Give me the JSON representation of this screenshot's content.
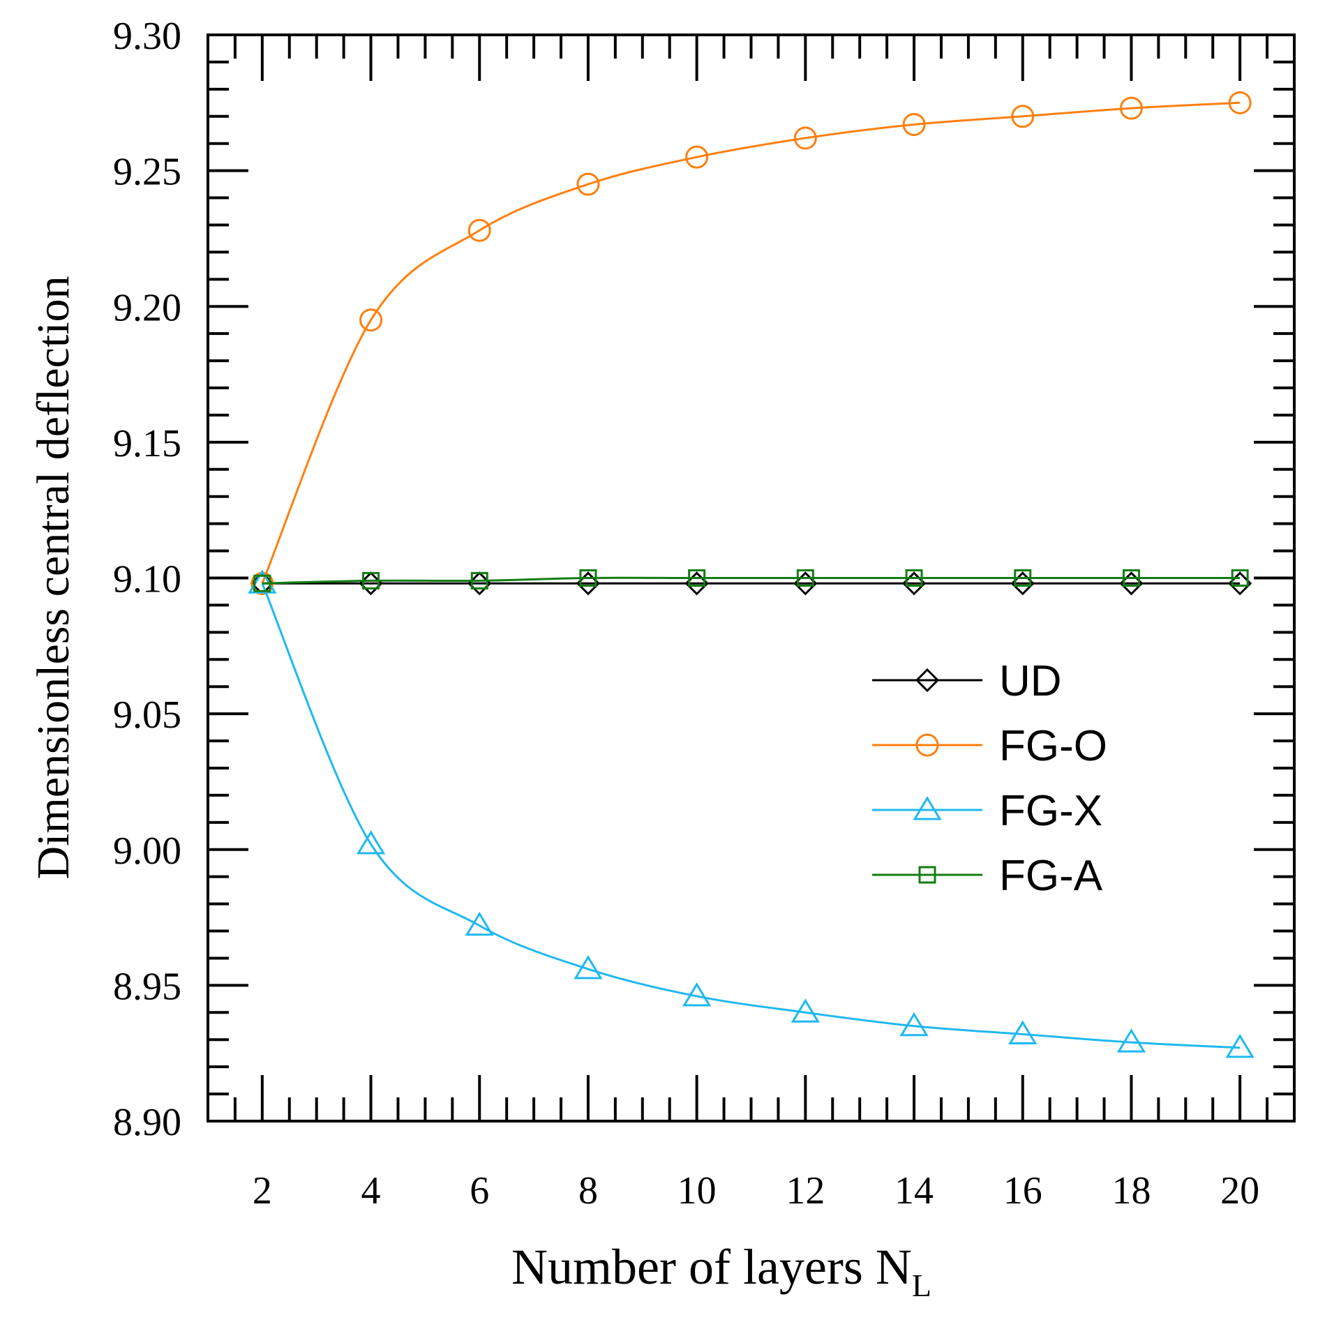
{
  "chart_data": {
    "type": "line",
    "title": "",
    "xlabel": "Number of layers N",
    "xlabel_subscript": "L",
    "ylabel": "Dimensionless central deflection",
    "xlim": [
      1,
      21
    ],
    "ylim": [
      8.9,
      9.3
    ],
    "x": [
      2,
      4,
      6,
      8,
      10,
      12,
      14,
      16,
      18,
      20
    ],
    "xticks": [
      2,
      4,
      6,
      8,
      10,
      12,
      14,
      16,
      18,
      20
    ],
    "xtick_labels": [
      "2",
      "4",
      "6",
      "8",
      "10",
      "12",
      "14",
      "16",
      "18",
      "20"
    ],
    "yticks": [
      8.9,
      8.95,
      9.0,
      9.05,
      9.1,
      9.15,
      9.2,
      9.25,
      9.3
    ],
    "ytick_labels": [
      "8.90",
      "8.95",
      "9.00",
      "9.05",
      "9.10",
      "9.15",
      "9.20",
      "9.25",
      "9.30"
    ],
    "grid": false,
    "legend_position": "right-center",
    "series": [
      {
        "name": "UD",
        "color": "#000000",
        "marker": "diamond",
        "values": [
          9.098,
          9.098,
          9.098,
          9.098,
          9.098,
          9.098,
          9.098,
          9.098,
          9.098,
          9.098
        ]
      },
      {
        "name": "FG-O",
        "color": "#ff7f0e",
        "marker": "circle",
        "values": [
          9.098,
          9.195,
          9.228,
          9.245,
          9.255,
          9.262,
          9.267,
          9.27,
          9.273,
          9.275
        ]
      },
      {
        "name": "FG-X",
        "color": "#1fb8f0",
        "marker": "triangle",
        "values": [
          9.098,
          9.002,
          8.972,
          8.956,
          8.946,
          8.94,
          8.935,
          8.932,
          8.929,
          8.927
        ]
      },
      {
        "name": "FG-A",
        "color": "#127d12",
        "marker": "square",
        "values": [
          9.098,
          9.099,
          9.099,
          9.1,
          9.1,
          9.1,
          9.1,
          9.1,
          9.1,
          9.1
        ]
      }
    ]
  }
}
